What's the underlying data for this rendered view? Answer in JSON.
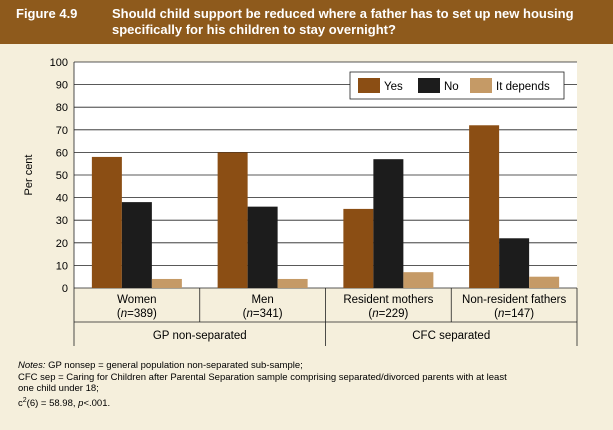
{
  "figure_number": "Figure 4.9",
  "figure_title_line1": "Should child support be reduced where a father has to set up new housing",
  "figure_title_line2": "specifically for his children to stay overnight?",
  "colors": {
    "header": "#8e5a1c",
    "background": "#f5efdc",
    "yes": "#8b4e14",
    "no": "#1c1c1c",
    "depends": "#c59a66"
  },
  "chart_data": {
    "type": "bar",
    "ylabel": "Per cent",
    "ylim": [
      0,
      100
    ],
    "yticks": [
      0,
      10,
      20,
      30,
      40,
      50,
      60,
      70,
      80,
      90,
      100
    ],
    "grid": true,
    "legend_position": "top-right",
    "categories": [
      {
        "name": "Women",
        "n": "389"
      },
      {
        "name": "Men",
        "n": "341"
      },
      {
        "name": "Resident mothers",
        "n": "229"
      },
      {
        "name": "Non-resident fathers",
        "n": "147"
      }
    ],
    "groups": [
      {
        "label": "GP non-separated",
        "categories": [
          0,
          1
        ]
      },
      {
        "label": "CFC separated",
        "categories": [
          2,
          3
        ]
      }
    ],
    "series": [
      {
        "name": "Yes",
        "color": "#8b4e14",
        "values": [
          58,
          60,
          35,
          72
        ]
      },
      {
        "name": "No",
        "color": "#1c1c1c",
        "values": [
          38,
          36,
          57,
          22
        ]
      },
      {
        "name": "It depends",
        "color": "#c59a66",
        "values": [
          4,
          4,
          7,
          5
        ]
      }
    ]
  },
  "notes": {
    "label": "Notes:",
    "line1": "GP nonsep = general population non-separated sub-sample;",
    "line2": "CFC sep = Caring for Children after Parental Separation sample comprising separated/divorced parents with at least",
    "line3": "one child under 18;",
    "stat_symbol": "c",
    "stat_sup": "2",
    "stat_value": "(6) = 58.98, ",
    "stat_p": "p",
    "stat_p_value": "<.001."
  }
}
